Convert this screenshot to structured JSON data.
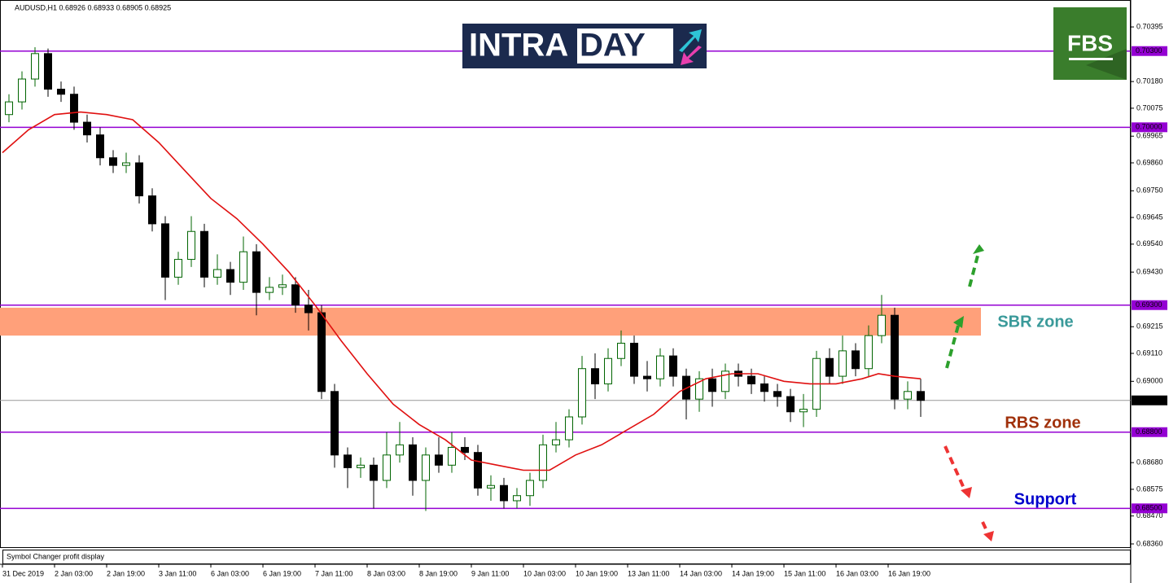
{
  "header": "AUDUSD,H1  0.68926 0.68933 0.68905 0.68925",
  "footer": "Symbol Changer profit display",
  "logo": {
    "left": "INTRA",
    "right": "DAY",
    "badge": "FBS"
  },
  "chart_data": {
    "type": "candlestick",
    "xlim": [
      -0.75,
      346.5
    ],
    "ylim": [
      0.68344,
      0.70501
    ],
    "up_color": "#006400",
    "down_color": "#000000",
    "x": [
      0,
      4,
      8,
      12,
      16,
      20,
      24,
      28,
      32,
      36,
      40,
      44,
      48,
      52,
      56,
      60,
      64,
      68,
      72,
      76,
      80,
      84,
      88,
      92,
      96,
      100,
      104,
      108,
      112,
      116,
      120,
      124,
      128,
      132,
      136,
      140,
      144,
      148,
      152,
      156,
      160,
      164,
      168,
      172,
      176,
      180,
      184,
      188,
      192,
      196,
      200,
      204,
      208,
      212,
      216,
      220,
      224,
      228,
      232,
      236,
      240,
      244,
      248,
      252,
      256,
      260,
      264,
      268,
      272,
      276,
      280
    ],
    "open": [
      0.7005,
      0.701,
      0.7019,
      0.7029,
      0.7015,
      0.7013,
      0.7002,
      0.6997,
      0.6988,
      0.6985,
      0.6986,
      0.6973,
      0.6962,
      0.6941,
      0.6948,
      0.6959,
      0.6941,
      0.6944,
      0.6939,
      0.6951,
      0.6935,
      0.6937,
      0.6938,
      0.693,
      0.6927,
      0.6896,
      0.6871,
      0.6866,
      0.6867,
      0.6861,
      0.6871,
      0.6875,
      0.6861,
      0.6871,
      0.6867,
      0.6874,
      0.6872,
      0.6858,
      0.6859,
      0.6853,
      0.6855,
      0.6861,
      0.6875,
      0.6877,
      0.6886,
      0.6905,
      0.6899,
      0.6909,
      0.6915,
      0.6902,
      0.6901,
      0.691,
      0.6902,
      0.6893,
      0.6901,
      0.6896,
      0.6904,
      0.6902,
      0.6899,
      0.6896,
      0.6894,
      0.6888,
      0.6889,
      0.6909,
      0.6902,
      0.6912,
      0.6905,
      0.6918,
      0.6926,
      0.6893,
      0.6896
    ],
    "high": [
      0.7013,
      0.7022,
      0.70315,
      0.7031,
      0.7018,
      0.7016,
      0.7005,
      0.7,
      0.6991,
      0.699,
      0.6989,
      0.6976,
      0.6965,
      0.6951,
      0.6965,
      0.6962,
      0.695,
      0.6947,
      0.6957,
      0.6954,
      0.6941,
      0.6942,
      0.6941,
      0.6936,
      0.693,
      0.6899,
      0.6874,
      0.687,
      0.687,
      0.688,
      0.6884,
      0.6878,
      0.6874,
      0.6878,
      0.688,
      0.6878,
      0.6875,
      0.6863,
      0.6862,
      0.6858,
      0.6864,
      0.6879,
      0.6884,
      0.6889,
      0.691,
      0.6911,
      0.6913,
      0.692,
      0.6918,
      0.6908,
      0.6913,
      0.6913,
      0.6905,
      0.6904,
      0.6905,
      0.6907,
      0.6907,
      0.6905,
      0.6902,
      0.6899,
      0.6897,
      0.6895,
      0.6912,
      0.6913,
      0.6918,
      0.6915,
      0.6922,
      0.6934,
      0.6929,
      0.69,
      0.6901
    ],
    "low": [
      0.7002,
      0.7007,
      0.7016,
      0.7012,
      0.701,
      0.6999,
      0.6994,
      0.6985,
      0.6982,
      0.6982,
      0.697,
      0.6959,
      0.6932,
      0.6938,
      0.6945,
      0.6937,
      0.6938,
      0.6934,
      0.6936,
      0.6926,
      0.6932,
      0.6934,
      0.6927,
      0.692,
      0.6893,
      0.6866,
      0.6858,
      0.6862,
      0.685,
      0.6858,
      0.6868,
      0.6855,
      0.6849,
      0.6864,
      0.6864,
      0.6869,
      0.6855,
      0.6853,
      0.685,
      0.685,
      0.6851,
      0.6858,
      0.6872,
      0.6874,
      0.6883,
      0.6893,
      0.6896,
      0.6906,
      0.6899,
      0.6896,
      0.6898,
      0.6898,
      0.6885,
      0.6888,
      0.689,
      0.6893,
      0.6898,
      0.6895,
      0.6892,
      0.689,
      0.6884,
      0.6882,
      0.6886,
      0.6899,
      0.6899,
      0.6902,
      0.6902,
      0.6915,
      0.6889,
      0.6889,
      0.6886
    ],
    "close": [
      0.701,
      0.7019,
      0.7029,
      0.7015,
      0.7013,
      0.7002,
      0.6997,
      0.6988,
      0.6985,
      0.6986,
      0.6973,
      0.6962,
      0.6941,
      0.6948,
      0.6959,
      0.6941,
      0.6944,
      0.6939,
      0.6951,
      0.6935,
      0.6937,
      0.6938,
      0.693,
      0.6927,
      0.6896,
      0.6871,
      0.6866,
      0.6867,
      0.6861,
      0.6871,
      0.6875,
      0.6861,
      0.6871,
      0.6867,
      0.6874,
      0.6872,
      0.6858,
      0.6859,
      0.6853,
      0.6855,
      0.6861,
      0.6875,
      0.6877,
      0.6886,
      0.6905,
      0.6899,
      0.6909,
      0.6915,
      0.6902,
      0.6901,
      0.691,
      0.6902,
      0.6893,
      0.6901,
      0.6896,
      0.6904,
      0.6902,
      0.6899,
      0.6896,
      0.6894,
      0.6888,
      0.6889,
      0.6909,
      0.6902,
      0.6912,
      0.6905,
      0.6918,
      0.6926,
      0.6893,
      0.6896,
      0.68925
    ],
    "moving_average": {
      "color": "#e01010",
      "x": [
        0,
        8,
        16,
        24,
        32,
        40,
        48,
        56,
        64,
        72,
        80,
        88,
        96,
        104,
        112,
        120,
        128,
        136,
        144,
        152,
        160,
        168,
        176,
        184,
        192,
        200,
        208,
        216,
        224,
        232,
        240,
        248,
        256,
        264,
        269,
        274,
        282
      ],
      "values": [
        0.699,
        0.6999,
        0.7005,
        0.7006,
        0.7005,
        0.7003,
        0.6994,
        0.6983,
        0.6972,
        0.6964,
        0.6954,
        0.6943,
        0.693,
        0.6916,
        0.6903,
        0.6891,
        0.6883,
        0.6877,
        0.6869,
        0.6867,
        0.6865,
        0.6865,
        0.6871,
        0.6875,
        0.6881,
        0.6887,
        0.6896,
        0.6901,
        0.6903,
        0.6903,
        0.69,
        0.6899,
        0.6899,
        0.6901,
        0.6903,
        0.6902,
        0.6901
      ]
    },
    "xticks": [
      {
        "value": 0,
        "label": "31 Dec 2019"
      },
      {
        "value": 16,
        "label": "2 Jan 03:00"
      },
      {
        "value": 32,
        "label": "2 Jan 19:00"
      },
      {
        "value": 48,
        "label": "3 Jan 11:00"
      },
      {
        "value": 64,
        "label": "6 Jan 03:00"
      },
      {
        "value": 80,
        "label": "6 Jan 19:00"
      },
      {
        "value": 96,
        "label": "7 Jan 11:00"
      },
      {
        "value": 112,
        "label": "8 Jan 03:00"
      },
      {
        "value": 128,
        "label": "8 Jan 19:00"
      },
      {
        "value": 144,
        "label": "9 Jan 11:00"
      },
      {
        "value": 160,
        "label": "10 Jan 03:00"
      },
      {
        "value": 176,
        "label": "10 Jan 19:00"
      },
      {
        "value": 192,
        "label": "13 Jan 11:00"
      },
      {
        "value": 208,
        "label": "14 Jan 03:00"
      },
      {
        "value": 224,
        "label": "14 Jan 19:00"
      },
      {
        "value": 240,
        "label": "15 Jan 11:00"
      },
      {
        "value": 256,
        "label": "16 Jan 03:00"
      },
      {
        "value": 272,
        "label": "16 Jan 19:00"
      }
    ],
    "yticks": [
      {
        "value": 0.70395,
        "label": "0.70395"
      },
      {
        "value": 0.7018,
        "label": "0.70180"
      },
      {
        "value": 0.70075,
        "label": "0.70075"
      },
      {
        "value": 0.69965,
        "label": "0.69965"
      },
      {
        "value": 0.6986,
        "label": "0.69860"
      },
      {
        "value": 0.6975,
        "label": "0.69750"
      },
      {
        "value": 0.69645,
        "label": "0.69645"
      },
      {
        "value": 0.6954,
        "label": "0.69540"
      },
      {
        "value": 0.6943,
        "label": "0.69430"
      },
      {
        "value": 0.69215,
        "label": "0.69215"
      },
      {
        "value": 0.6911,
        "label": "0.69110"
      },
      {
        "value": 0.69,
        "label": "0.69000"
      },
      {
        "value": 0.6868,
        "label": "0.68680"
      },
      {
        "value": 0.68575,
        "label": "0.68575"
      },
      {
        "value": 0.6847,
        "label": "0.68470"
      },
      {
        "value": 0.6836,
        "label": "0.68360"
      }
    ],
    "levels": [
      {
        "value": 0.703,
        "label": "0.70300"
      },
      {
        "value": 0.7,
        "label": "0.70000"
      },
      {
        "value": 0.693,
        "label": "0.69300"
      },
      {
        "value": 0.688,
        "label": "0.68800"
      },
      {
        "value": 0.685,
        "label": "0.68500"
      }
    ],
    "level_color": "#9400d3",
    "current_price": {
      "value": 0.68925,
      "label": "0.68925"
    },
    "zone": {
      "low": 0.6918,
      "high": 0.6929,
      "x": [
        -0.75,
        300.5
      ],
      "color": "#ffa07a"
    },
    "annotations": [
      "SBR zone",
      "RBS zone",
      "Support"
    ]
  }
}
